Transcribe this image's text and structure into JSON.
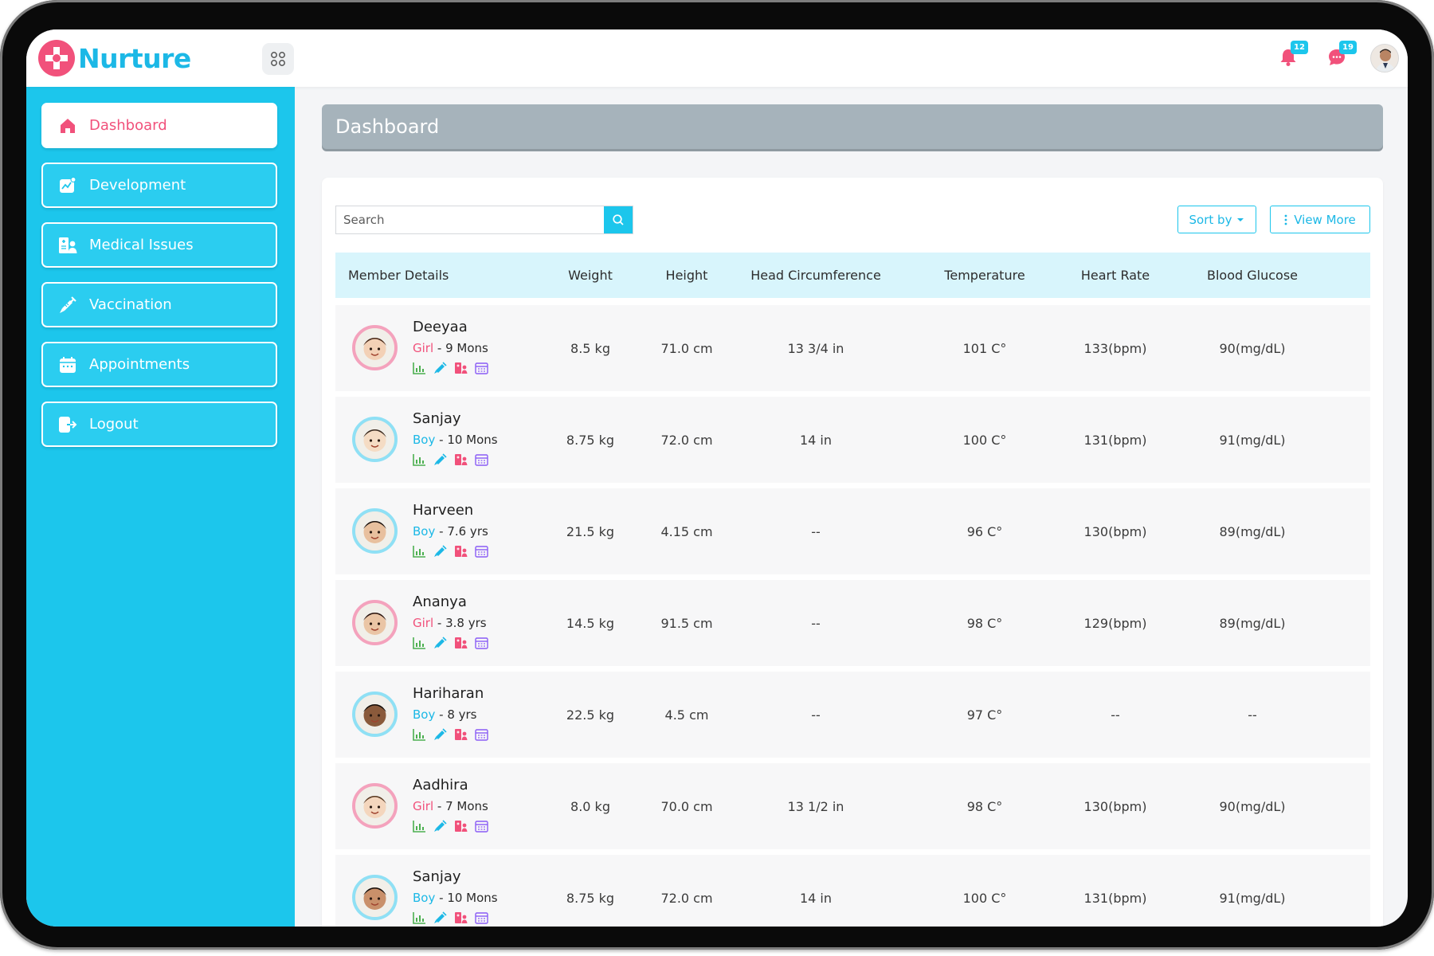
{
  "app": {
    "name": "Nurture"
  },
  "notifications": {
    "bell_count": "12",
    "chat_count": "19"
  },
  "sidebar": {
    "items": [
      {
        "label": "Dashboard",
        "icon": "home-icon",
        "active": true
      },
      {
        "label": "Development",
        "icon": "growth-chart-icon",
        "active": false
      },
      {
        "label": "Medical Issues",
        "icon": "medical-record-icon",
        "active": false
      },
      {
        "label": "Vaccination",
        "icon": "syringe-icon",
        "active": false
      },
      {
        "label": "Appointments",
        "icon": "calendar-icon",
        "active": false
      },
      {
        "label": "Logout",
        "icon": "logout-icon",
        "active": false
      }
    ]
  },
  "page": {
    "title": "Dashboard"
  },
  "toolbar": {
    "search_placeholder": "Search",
    "sort_label": "Sort by",
    "view_more_label": "View More"
  },
  "table": {
    "headers": [
      "Member Details",
      "Weight",
      "Height",
      "Head Circumference",
      "Temperature",
      "Heart Rate",
      "Blood Glucose"
    ],
    "rows": [
      {
        "name": "Deeyaa",
        "gender": "Girl",
        "age": "9 Mons",
        "weight": "8.5 kg",
        "height": "71.0 cm",
        "head": "13 3/4 in",
        "temp": "101 C°",
        "heart": "133(bpm)",
        "glucose": "90(mg/dL)"
      },
      {
        "name": "Sanjay",
        "gender": "Boy",
        "age": "10 Mons",
        "weight": "8.75 kg",
        "height": "72.0 cm",
        "head": "14 in",
        "temp": "100 C°",
        "heart": "131(bpm)",
        "glucose": "91(mg/dL)"
      },
      {
        "name": "Harveen",
        "gender": "Boy",
        "age": "7.6 yrs",
        "weight": "21.5 kg",
        "height": "4.15 cm",
        "head": "--",
        "temp": "96 C°",
        "heart": "130(bpm)",
        "glucose": "89(mg/dL)"
      },
      {
        "name": "Ananya",
        "gender": "Girl",
        "age": "3.8 yrs",
        "weight": "14.5 kg",
        "height": "91.5 cm",
        "head": "--",
        "temp": "98 C°",
        "heart": "129(bpm)",
        "glucose": "89(mg/dL)"
      },
      {
        "name": "Hariharan",
        "gender": "Boy",
        "age": "8 yrs",
        "weight": "22.5 kg",
        "height": "4.5 cm",
        "head": "--",
        "temp": "97 C°",
        "heart": "--",
        "glucose": "--"
      },
      {
        "name": "Aadhira",
        "gender": "Girl",
        "age": "7 Mons",
        "weight": "8.0 kg",
        "height": "70.0 cm",
        "head": "13 1/2 in",
        "temp": "98 C°",
        "heart": "130(bpm)",
        "glucose": "90(mg/dL)"
      },
      {
        "name": "Sanjay",
        "gender": "Boy",
        "age": "10 Mons",
        "weight": "8.75 kg",
        "height": "72.0 cm",
        "head": "14 in",
        "temp": "100 C°",
        "heart": "131(bpm)",
        "glucose": "91(mg/dL)"
      }
    ]
  },
  "colors": {
    "primary": "#1cc6ec",
    "accent_pink": "#f1517b",
    "header_bg": "#d8f5fc",
    "title_bar": "#a6b3bb"
  }
}
